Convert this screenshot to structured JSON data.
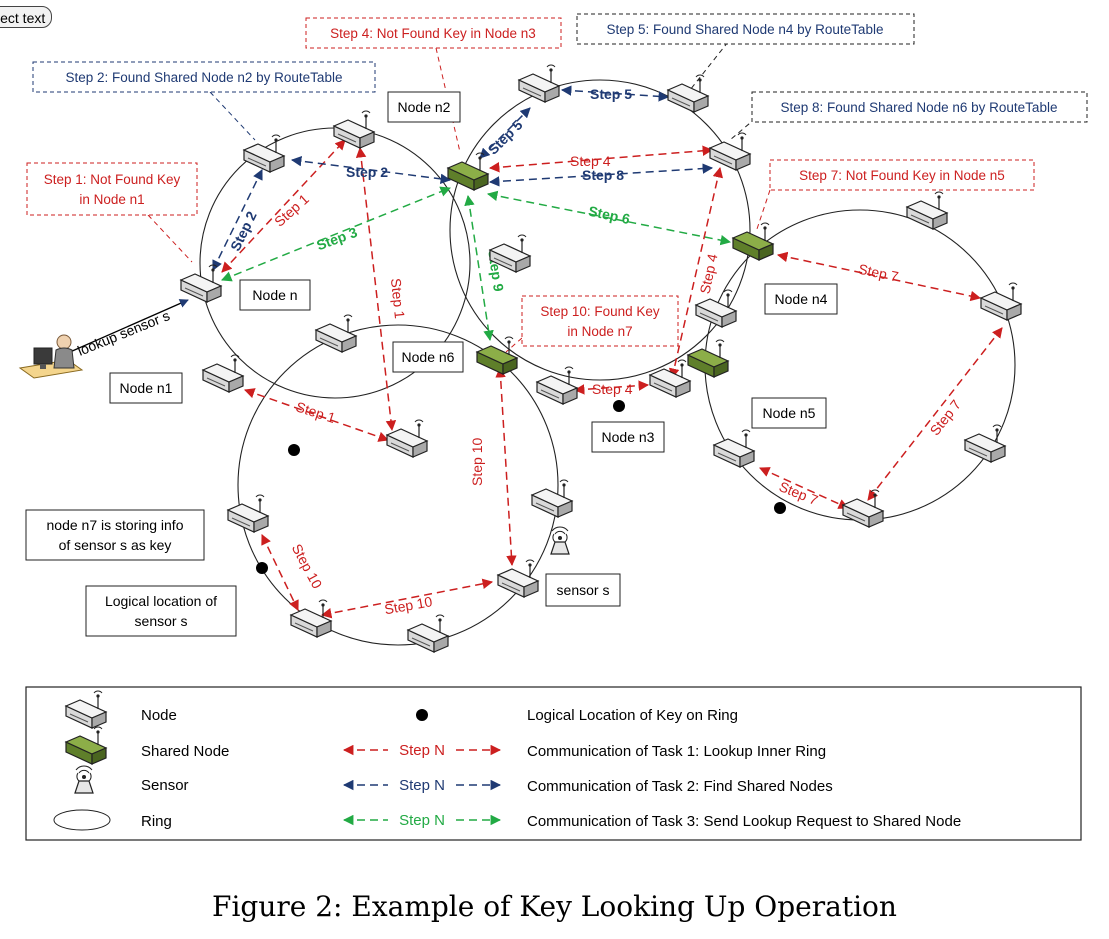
{
  "toolbar": {
    "select_text_label": "lect text"
  },
  "caption": "Figure 2: Example of Key Looking Up Operation",
  "colors": {
    "task1": "#cc1f1f",
    "task2": "#1f3a73",
    "task3": "#22aa44",
    "shared": "#6b8e2f"
  },
  "callouts": [
    {
      "id": "step1",
      "color": "red",
      "lines": [
        "Step 1: Not Found Key",
        "in Node n1"
      ]
    },
    {
      "id": "step2",
      "color": "navy",
      "lines": [
        "Step 2: Found Shared Node n2 by RouteTable"
      ]
    },
    {
      "id": "step4",
      "color": "red",
      "lines": [
        "Step 4: Not Found Key in Node n3"
      ]
    },
    {
      "id": "step5",
      "color": "navy",
      "lines": [
        "Step 5: Found Shared Node n4 by RouteTable"
      ]
    },
    {
      "id": "step8",
      "color": "navy",
      "lines": [
        "Step 8: Found Shared Node n6 by RouteTable"
      ]
    },
    {
      "id": "step7",
      "color": "red",
      "lines": [
        "Step 7: Not Found Key in Node n5"
      ]
    },
    {
      "id": "step10",
      "color": "red",
      "lines": [
        "Step 10: Found Key",
        "in Node n7"
      ]
    }
  ],
  "labels": [
    {
      "id": "n",
      "lines": [
        "Node n"
      ]
    },
    {
      "id": "n1",
      "lines": [
        "Node n1"
      ]
    },
    {
      "id": "n2",
      "lines": [
        "Node n2"
      ]
    },
    {
      "id": "n3",
      "lines": [
        "Node n3"
      ]
    },
    {
      "id": "n4",
      "lines": [
        "Node n4"
      ]
    },
    {
      "id": "n5",
      "lines": [
        "Node n5"
      ]
    },
    {
      "id": "n6",
      "lines": [
        "Node n6"
      ]
    },
    {
      "id": "n7",
      "lines": [
        "node n7 is storing info",
        "of sensor s as key"
      ]
    },
    {
      "id": "loc",
      "lines": [
        "Logical location of",
        "sensor s"
      ]
    },
    {
      "id": "sensor",
      "lines": [
        "sensor s"
      ]
    }
  ],
  "lookup_label": "lookup sensor s",
  "arrows": [
    {
      "id": "s1a",
      "task": 1,
      "label": "Step 1"
    },
    {
      "id": "s1b",
      "task": 1,
      "label": "Step 1"
    },
    {
      "id": "s1c",
      "task": 1,
      "label": "Step 1"
    },
    {
      "id": "s2a",
      "task": 2,
      "label": "Step 2"
    },
    {
      "id": "s2b",
      "task": 2,
      "label": "Step 2"
    },
    {
      "id": "s3",
      "task": 3,
      "label": "Step 3"
    },
    {
      "id": "s4a",
      "task": 1,
      "label": "Step 4"
    },
    {
      "id": "s4b",
      "task": 1,
      "label": "Step 4"
    },
    {
      "id": "s4c",
      "task": 1,
      "label": "Step 4"
    },
    {
      "id": "s5a",
      "task": 2,
      "label": "Step 5"
    },
    {
      "id": "s5b",
      "task": 2,
      "label": "Step 5"
    },
    {
      "id": "s6",
      "task": 3,
      "label": "Step 6"
    },
    {
      "id": "s7a",
      "task": 1,
      "label": "Step 7"
    },
    {
      "id": "s7b",
      "task": 1,
      "label": "Step 7"
    },
    {
      "id": "s7c",
      "task": 1,
      "label": "Step 7"
    },
    {
      "id": "s8",
      "task": 2,
      "label": "Step 8"
    },
    {
      "id": "s9",
      "task": 3,
      "label": "Step 9"
    },
    {
      "id": "s10a",
      "task": 1,
      "label": "Step 10"
    },
    {
      "id": "s10b",
      "task": 1,
      "label": "Step 10"
    },
    {
      "id": "s10c",
      "task": 1,
      "label": "Step 10"
    }
  ],
  "legend": {
    "node": "Node",
    "shared_node": "Shared Node",
    "sensor": "Sensor",
    "ring": "Ring",
    "key_location": "Logical Location of Key on Ring",
    "step_label": "Step N",
    "task1": "Communication of Task 1: Lookup Inner Ring",
    "task2": "Communication of Task 2: Find Shared Nodes",
    "task3": "Communication of Task 3: Send Lookup Request to Shared Node"
  }
}
